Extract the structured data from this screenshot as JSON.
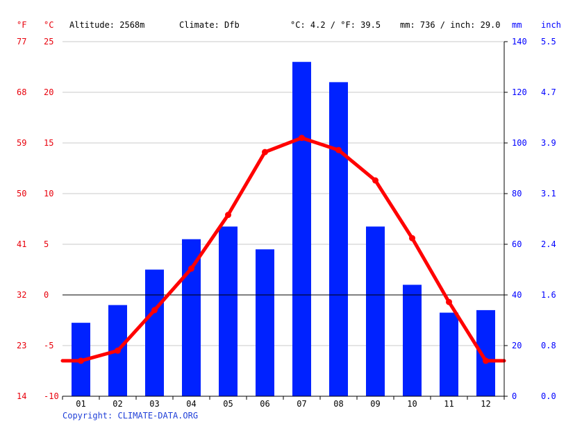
{
  "header": {
    "unit_f": "°F",
    "unit_c": "°C",
    "altitude": "Altitude: 2568m",
    "climate": "Climate: Dfb",
    "avg_temp": "°C: 4.2 / °F: 39.5",
    "precip": "mm: 736 / inch: 29.0",
    "unit_mm": "mm",
    "unit_inch": "inch"
  },
  "footer": {
    "copyright": "Copyright: CLIMATE-DATA.ORG"
  },
  "colors": {
    "bars": "#0022ff",
    "line": "#ff0000",
    "left_axis": "#e8000b",
    "right_axis": "#0000ff",
    "grid": "#c8c8c8"
  },
  "chart_data": {
    "type": "bar",
    "categories": [
      "01",
      "02",
      "03",
      "04",
      "05",
      "06",
      "07",
      "08",
      "09",
      "10",
      "11",
      "12"
    ],
    "series": [
      {
        "type": "bar",
        "axis": "right",
        "values": [
          29,
          36,
          50,
          62,
          67,
          58,
          132,
          124,
          67,
          44,
          33,
          34
        ]
      },
      {
        "type": "line",
        "axis": "left",
        "values": [
          -6.5,
          -5.5,
          -1.5,
          2.6,
          7.9,
          14.1,
          15.5,
          14.3,
          11.3,
          5.6,
          -0.7,
          -6.5
        ]
      }
    ],
    "left_axis": {
      "ticks": [
        -10,
        -5,
        0,
        5,
        10,
        15,
        20,
        25
      ],
      "ylim": [
        -10,
        25
      ]
    },
    "left_f_ticks": [
      "14",
      "23",
      "32",
      "41",
      "50",
      "59",
      "68",
      "77"
    ],
    "right_axis": {
      "ticks": [
        0,
        20,
        40,
        60,
        80,
        100,
        120,
        140
      ],
      "ylim": [
        0,
        140
      ]
    },
    "right_inch_ticks": [
      "0.0",
      "0.8",
      "1.6",
      "2.4",
      "3.1",
      "3.9",
      "4.7",
      "5.5"
    ],
    "grid": true
  }
}
